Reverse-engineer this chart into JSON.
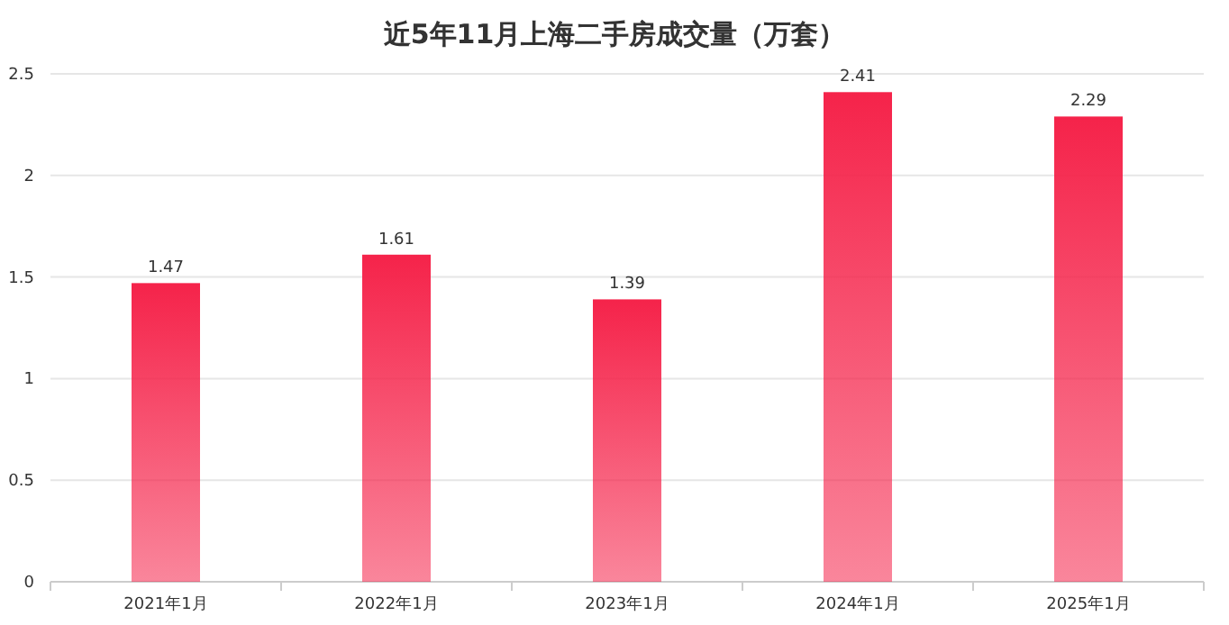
{
  "chart_data": {
    "type": "bar",
    "title": "近5年11月上海二手房成交量（万套）",
    "categories": [
      "2021年1月",
      "2022年1月",
      "2023年1月",
      "2024年1月",
      "2025年1月"
    ],
    "series": [
      {
        "color": "#f5234a",
        "values": [
          1.47,
          1.61,
          1.39,
          2.41,
          2.29
        ]
      }
    ],
    "ylim": [
      0,
      2.5
    ],
    "yticks": [
      0,
      0.5,
      1,
      1.5,
      2,
      2.5
    ],
    "grid": "y",
    "data_labels": true
  }
}
